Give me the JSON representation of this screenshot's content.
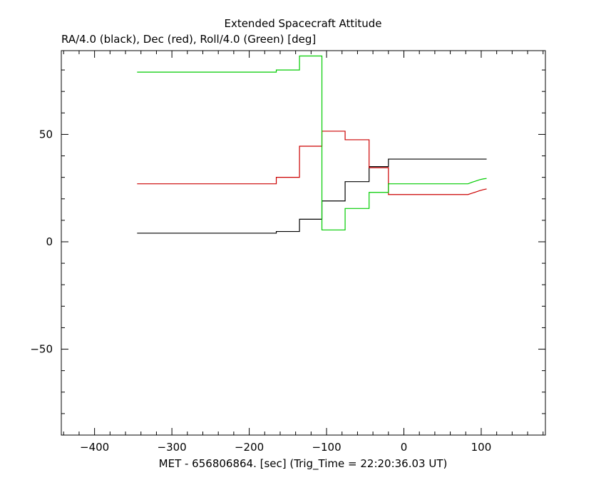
{
  "chart_data": {
    "type": "line",
    "title": "Extended Spacecraft Attitude",
    "subtitle": "RA/4.0 (black), Dec (red), Roll/4.0 (Green) [deg]",
    "xlabel": "MET - 656806864. [sec] (Trig_Time = 22:20:36.03 UT)",
    "ylabel": "",
    "xlim": [
      -443,
      183
    ],
    "ylim": [
      -90,
      89
    ],
    "x_major_ticks": [
      -400,
      -300,
      -200,
      -100,
      0,
      100
    ],
    "x_tick_labels": [
      "−400",
      "−300",
      "−200",
      "−100",
      "0",
      "100"
    ],
    "y_major_ticks": [
      -50,
      0,
      50
    ],
    "y_tick_labels": [
      "−50",
      "0",
      "50"
    ],
    "grid": false,
    "series": [
      {
        "color": "#000000",
        "points": [
          [
            -345,
            4
          ],
          [
            -165,
            4
          ],
          [
            -165,
            4.8
          ],
          [
            -135,
            4.8
          ],
          [
            -135,
            10.5
          ],
          [
            -106,
            10.5
          ],
          [
            -106,
            19
          ],
          [
            -76,
            19
          ],
          [
            -76,
            28
          ],
          [
            -45,
            28
          ],
          [
            -45,
            35
          ],
          [
            -20,
            35
          ],
          [
            -20,
            38.5
          ],
          [
            107,
            38.5
          ]
        ]
      },
      {
        "color": "#cc0000",
        "points": [
          [
            -345,
            27
          ],
          [
            -165,
            27
          ],
          [
            -165,
            30
          ],
          [
            -135,
            30
          ],
          [
            -135,
            44.5
          ],
          [
            -106,
            44.5
          ],
          [
            -106,
            51.5
          ],
          [
            -76,
            51.5
          ],
          [
            -76,
            47.5
          ],
          [
            -45,
            47.5
          ],
          [
            -45,
            34.5
          ],
          [
            -20,
            34.5
          ],
          [
            -20,
            22
          ],
          [
            83,
            22
          ],
          [
            88,
            22.6
          ],
          [
            93,
            23.2
          ],
          [
            98,
            23.8
          ],
          [
            103,
            24.3
          ],
          [
            107,
            24.6
          ]
        ]
      },
      {
        "color": "#00cc00",
        "points": [
          [
            -345,
            79
          ],
          [
            -165,
            79
          ],
          [
            -165,
            80
          ],
          [
            -135,
            80
          ],
          [
            -135,
            86.5
          ],
          [
            -106,
            86.5
          ],
          [
            -106,
            5.5
          ],
          [
            -76,
            5.5
          ],
          [
            -76,
            15.5
          ],
          [
            -45,
            15.5
          ],
          [
            -45,
            23
          ],
          [
            -20,
            23
          ],
          [
            -20,
            27
          ],
          [
            83,
            27
          ],
          [
            88,
            27.7
          ],
          [
            93,
            28.3
          ],
          [
            98,
            28.9
          ],
          [
            103,
            29.3
          ],
          [
            107,
            29.5
          ]
        ]
      }
    ]
  }
}
